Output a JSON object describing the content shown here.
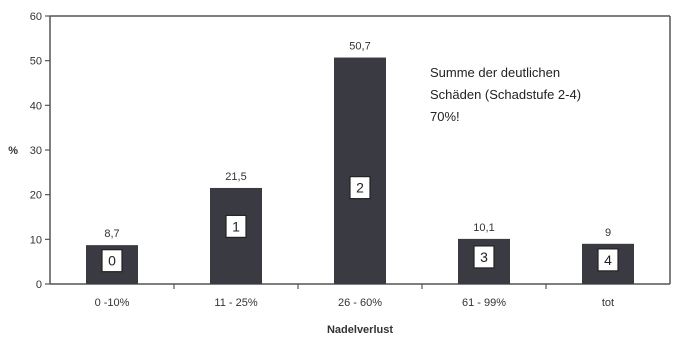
{
  "chart_data": {
    "type": "bar",
    "categories": [
      "0 -10%",
      "11 - 25%",
      "26 - 60%",
      "61 - 99%",
      "tot"
    ],
    "values": [
      8.7,
      21.5,
      50.7,
      10.1,
      9
    ],
    "value_labels": [
      "8,7",
      "21,5",
      "50,7",
      "10,1",
      "9"
    ],
    "stage_labels": [
      "0",
      "1",
      "2",
      "3",
      "4"
    ],
    "xlabel": "Nadelverlust",
    "ylabel": "%",
    "ylim": [
      0,
      60
    ],
    "yticks": [
      0,
      10,
      20,
      30,
      40,
      50,
      60
    ],
    "grid": false,
    "bar_color": "#3a3a42",
    "annotation": [
      "Summe der deutlichen",
      "Schäden (Schadstufe 2-4)",
      "70%!"
    ]
  }
}
